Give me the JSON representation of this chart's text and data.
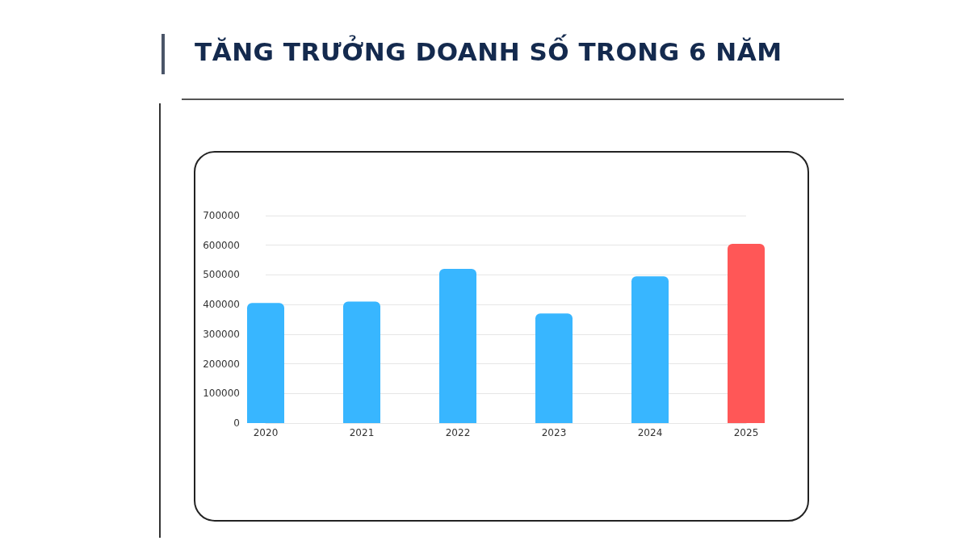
{
  "chart_data": {
    "type": "bar",
    "title": "TĂNG TRƯỞNG DOANH SỐ TRONG 6 NĂM",
    "categories": [
      "2020",
      "2021",
      "2022",
      "2023",
      "2024",
      "2025"
    ],
    "values": [
      405000,
      410000,
      520000,
      370000,
      495000,
      605000
    ],
    "colors": [
      "#38b6ff",
      "#38b6ff",
      "#38b6ff",
      "#38b6ff",
      "#38b6ff",
      "#ff5757"
    ],
    "ylim": [
      0,
      700000
    ],
    "yticks": [
      0,
      100000,
      200000,
      300000,
      400000,
      500000,
      600000,
      700000
    ],
    "grid": "y"
  }
}
